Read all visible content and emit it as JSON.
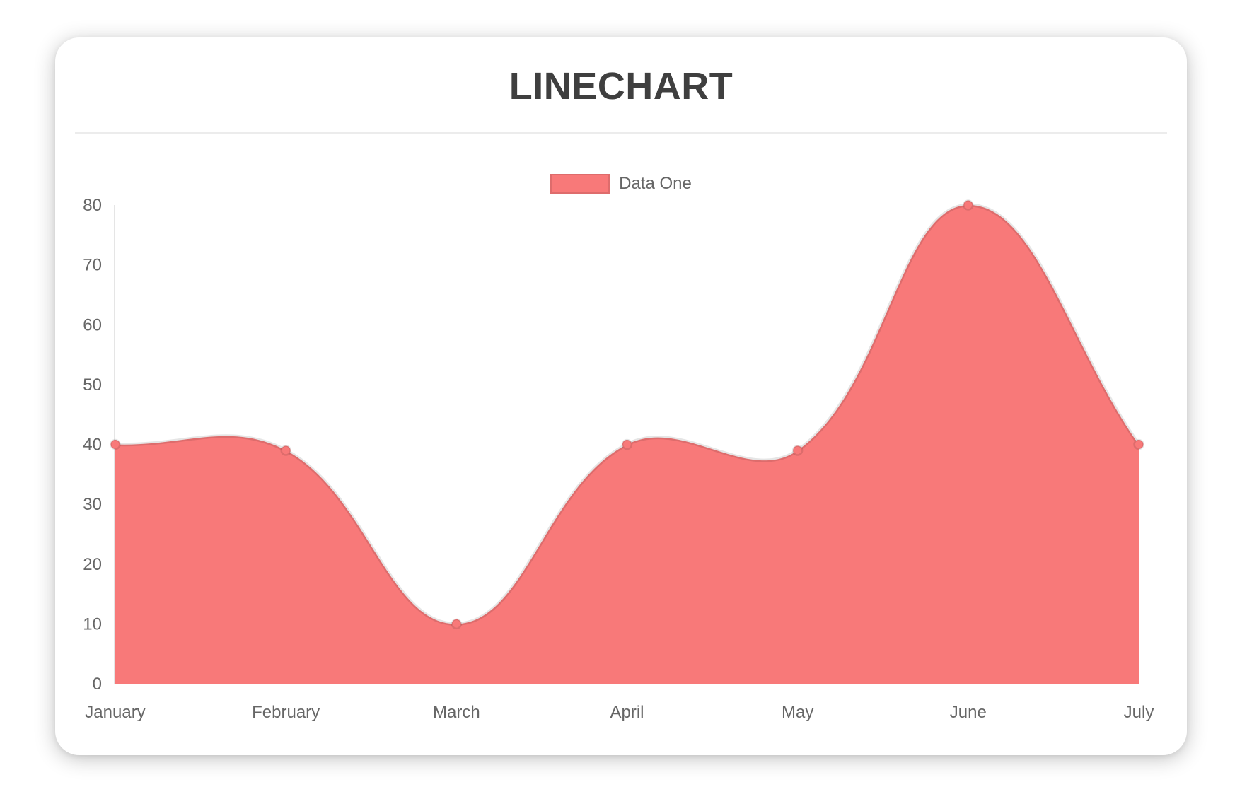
{
  "card": {
    "title": "LINECHART"
  },
  "legend": {
    "label": "Data One",
    "color": "#f87979"
  },
  "chart_data": {
    "type": "line",
    "title": "LINECHART",
    "categories": [
      "January",
      "February",
      "March",
      "April",
      "May",
      "June",
      "July"
    ],
    "series": [
      {
        "name": "Data One",
        "values": [
          40,
          39,
          10,
          40,
          39,
          80,
          40
        ]
      }
    ],
    "xlabel": "",
    "ylabel": "",
    "ylim": [
      0,
      80
    ],
    "yticks": [
      0,
      10,
      20,
      30,
      40,
      50,
      60,
      70,
      80
    ],
    "grid": false,
    "legend_position": "top-center",
    "area_fill": true,
    "smoothing_tension": 0.4,
    "colors": {
      "area": "#f87979",
      "point": "#f87979",
      "line_border": "rgba(0,0,0,0.10)",
      "axis_line": "rgba(0,0,0,0.10)",
      "tick_text": "#666666"
    }
  }
}
